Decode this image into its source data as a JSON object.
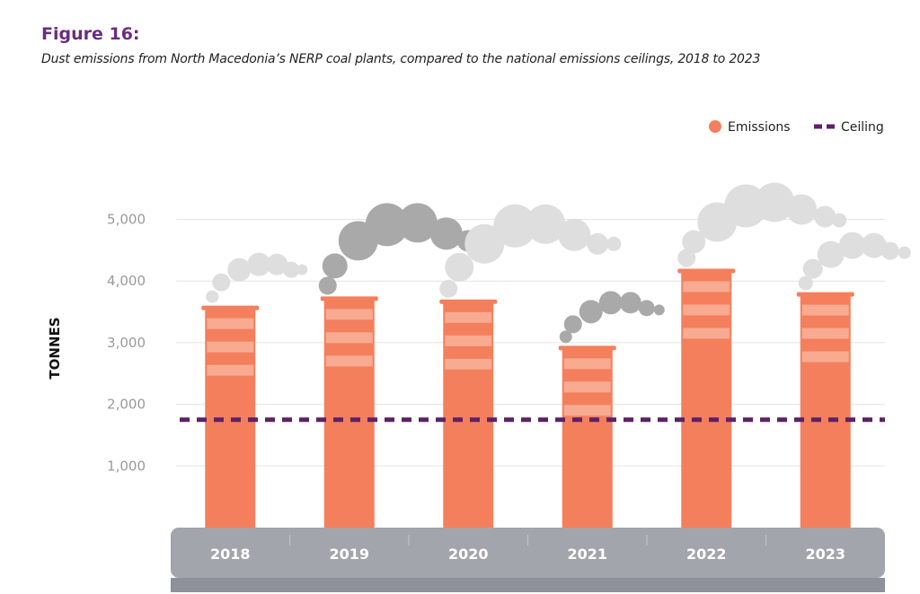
{
  "figure": {
    "label": "Figure 16:",
    "subtitle": "Dust emissions from North Macedonia’s NERP coal plants, compared to the national emissions ceilings, 2018 to 2023"
  },
  "colors": {
    "emissions": "#f47f5c",
    "stripe": "#f8ab91",
    "ceiling": "#5d2167",
    "grid": "#e3e3e3",
    "base": "#a3a5ad",
    "base_dark": "#8e909a",
    "smoke_dark": "#a9a9a9",
    "smoke_light": "#dedede"
  },
  "chart_data": {
    "type": "bar",
    "title": "",
    "xlabel": "",
    "ylabel": "TONNES",
    "categories": [
      "2018",
      "2019",
      "2020",
      "2021",
      "2022",
      "2023"
    ],
    "series": [
      {
        "name": "Emissions",
        "values": [
          3600,
          3750,
          3700,
          2950,
          4200,
          3820
        ]
      }
    ],
    "ceiling": {
      "name": "Ceiling",
      "value": 1750
    },
    "ylim": [
      0,
      5400
    ],
    "yticks": [
      1000,
      2000,
      3000,
      4000,
      5000
    ],
    "ytick_labels": [
      "1,000",
      "2,000",
      "3,000",
      "4,000",
      "5,000"
    ],
    "grid": true,
    "legend": {
      "placement": "top-right",
      "items": [
        "Emissions",
        "Ceiling"
      ]
    }
  }
}
